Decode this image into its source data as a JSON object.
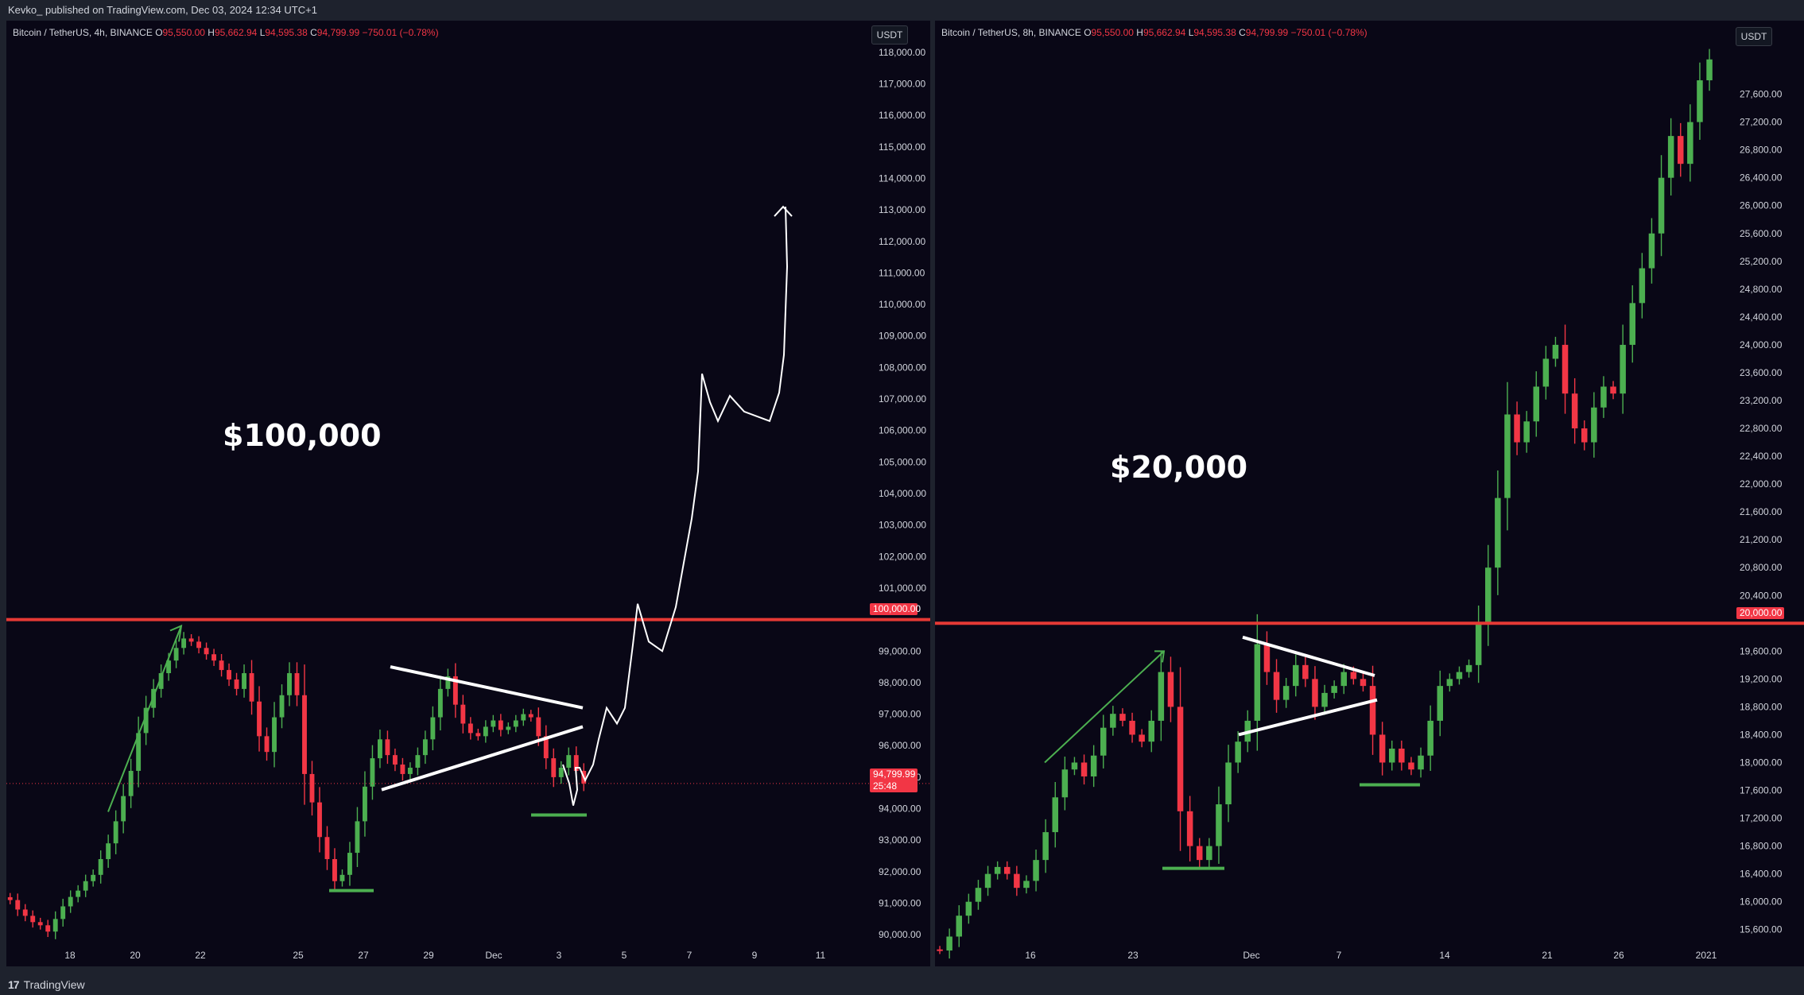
{
  "header": {
    "publisher_line": "Kevko_ published on TradingView.com, Dec 03, 2024 12:34 UTC+1"
  },
  "footer": {
    "brand": "TradingView",
    "logo_glyph": "17"
  },
  "left_chart": {
    "legend_symbol": "Bitcoin / TetherUS, 4h, BINANCE",
    "open_label": "O",
    "open": "95,550.00",
    "high_label": "H",
    "high": "95,662.94",
    "low_label": "L",
    "low": "94,595.38",
    "close_label": "C",
    "close": "94,799.99",
    "change": "−750.01 (−0.78%)",
    "currency": "USDT",
    "annotation": "$100,000",
    "key_level": "100,000.00",
    "last_price": "94,799.99",
    "countdown": "25:48"
  },
  "right_chart": {
    "legend_symbol": "Bitcoin / TetherUS, 8h, BINANCE",
    "open_label": "O",
    "open": "95,550.00",
    "high_label": "H",
    "high": "95,662.94",
    "low_label": "L",
    "low": "94,595.38",
    "close_label": "C",
    "close": "94,799.99",
    "change": "−750.01 (−0.78%)",
    "currency": "USDT",
    "annotation": "$20,000",
    "key_level": "20,000.00"
  },
  "colors": {
    "up": "#4caf50",
    "down": "#f23645",
    "level": "#e53935",
    "background": "#090716"
  },
  "chart_data": [
    {
      "type": "candlestick",
      "title": "Bitcoin / TetherUS, 4h, BINANCE",
      "ylim": [
        89500,
        118500
      ],
      "y_ticks": [
        "90,000.00",
        "91,000.00",
        "92,000.00",
        "93,000.00",
        "94,000.00",
        "95,000.00",
        "96,000.00",
        "97,000.00",
        "98,000.00",
        "99,000.00",
        "101,000.00",
        "102,000.00",
        "103,000.00",
        "104,000.00",
        "105,000.00",
        "106,000.00",
        "107,000.00",
        "108,000.00",
        "109,000.00",
        "110,000.00",
        "111,000.00",
        "112,000.00",
        "113,000.00",
        "114,000.00",
        "115,000.00",
        "116,000.00",
        "117,000.00",
        "118,000.00"
      ],
      "x_ticks": [
        "18",
        "20",
        "22",
        "25",
        "27",
        "29",
        "Dec",
        "3",
        "5",
        "7",
        "9",
        "11"
      ],
      "key_level": 100000,
      "last_price": 94799.99,
      "close_path": [
        91100,
        90800,
        90600,
        90400,
        90300,
        90100,
        90500,
        90900,
        91200,
        91400,
        91700,
        91900,
        92400,
        92900,
        93600,
        94400,
        95200,
        96400,
        97200,
        97800,
        98300,
        98700,
        99100,
        99400,
        99300,
        99100,
        98900,
        98700,
        98400,
        98100,
        97800,
        98300,
        97400,
        96300,
        95800,
        96900,
        97600,
        98300,
        97600,
        95100,
        94200,
        93100,
        92400,
        91700,
        91900,
        92600,
        93600,
        94700,
        95600,
        96200,
        95700,
        95400,
        95100,
        95300,
        95700,
        96200,
        96900,
        97800,
        98200,
        97300,
        96700,
        96400,
        96300,
        96600,
        96800,
        96500,
        96600,
        96800,
        97000,
        96900,
        96300,
        95600,
        95000,
        95300,
        95700,
        95200,
        94800
      ]
    },
    {
      "type": "candlestick",
      "title": "Bitcoin / TetherUS, 8h, BINANCE",
      "ylim": [
        15300,
        28200
      ],
      "y_ticks": [
        "15,600.00",
        "16,000.00",
        "16,400.00",
        "16,800.00",
        "17,200.00",
        "17,600.00",
        "18,000.00",
        "18,400.00",
        "18,800.00",
        "19,200.00",
        "19,600.00",
        "20,400.00",
        "20,800.00",
        "21,200.00",
        "21,600.00",
        "22,000.00",
        "22,400.00",
        "22,800.00",
        "23,200.00",
        "23,600.00",
        "24,000.00",
        "24,400.00",
        "24,800.00",
        "25,200.00",
        "25,600.00",
        "26,000.00",
        "26,400.00",
        "26,800.00",
        "27,200.00",
        "27,600.00"
      ],
      "x_ticks": [
        "16",
        "23",
        "Dec",
        "7",
        "14",
        "21",
        "26",
        "2021"
      ],
      "key_level": 20000,
      "close_path": [
        15300,
        15500,
        15800,
        16000,
        16200,
        16400,
        16500,
        16400,
        16200,
        16300,
        16600,
        17000,
        17500,
        17900,
        18000,
        17800,
        18100,
        18500,
        18700,
        18600,
        18400,
        18300,
        18600,
        19300,
        18800,
        17300,
        16800,
        16600,
        16800,
        17400,
        18000,
        18300,
        18600,
        19700,
        19300,
        18900,
        19100,
        19400,
        19200,
        18800,
        19000,
        19100,
        19300,
        19200,
        19100,
        18400,
        18000,
        18200,
        18000,
        17900,
        18100,
        18600,
        19100,
        19200,
        19300,
        19400,
        20000,
        20800,
        21800,
        23000,
        22600,
        22900,
        23400,
        23800,
        24000,
        23300,
        22800,
        22600,
        23100,
        23400,
        23300,
        24000,
        24600,
        25100,
        25600,
        26400,
        27000,
        26600,
        27200,
        27800,
        28100
      ]
    }
  ]
}
